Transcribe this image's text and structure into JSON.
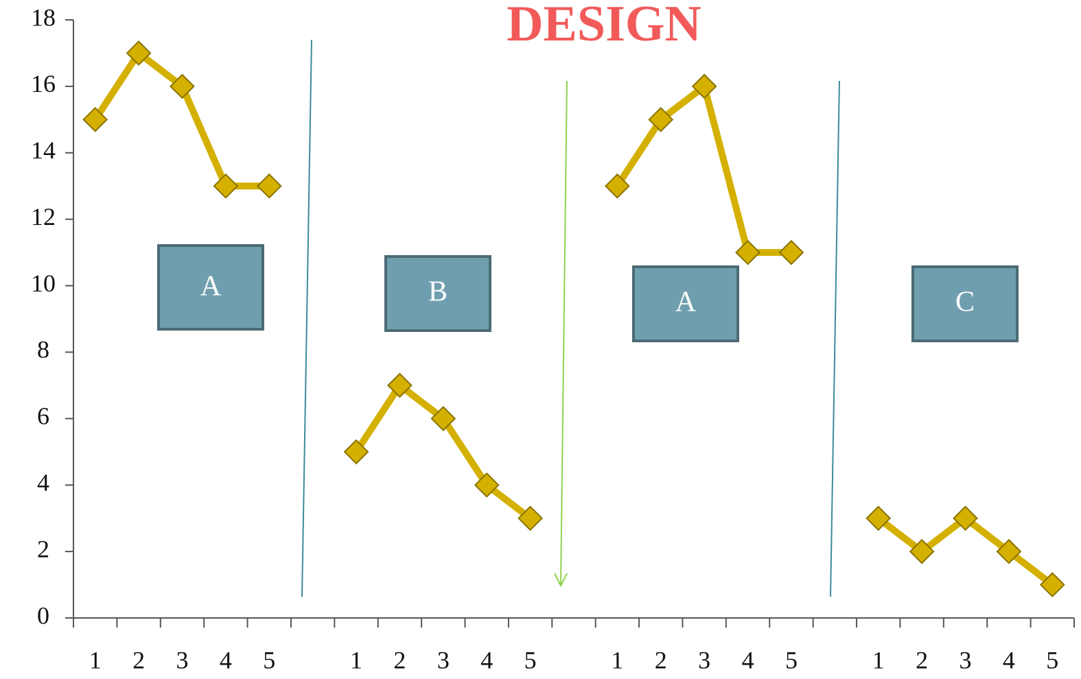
{
  "chart_data": {
    "type": "line",
    "title": "DESIGN",
    "categories": [
      "1",
      "2",
      "3",
      "4",
      "5",
      null,
      "1",
      "2",
      "3",
      "4",
      "5",
      null,
      "1",
      "2",
      "3",
      "4",
      "5",
      null,
      "1",
      "2",
      "3",
      "4",
      "5"
    ],
    "values": [
      15,
      17,
      16,
      13,
      13,
      null,
      5,
      7,
      6,
      4,
      3,
      null,
      13,
      15,
      16,
      11,
      11,
      null,
      3,
      2,
      3,
      2,
      1
    ],
    "color": "#d4b000",
    "ylim": [
      0,
      18
    ],
    "yticks": [
      0,
      2,
      4,
      6,
      8,
      10,
      12,
      14,
      16,
      18
    ],
    "phase_labels": [
      "A",
      "B",
      "A",
      "C"
    ]
  }
}
